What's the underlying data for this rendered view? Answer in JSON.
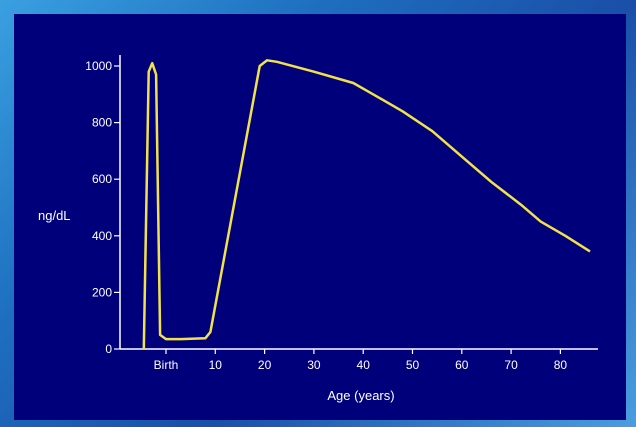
{
  "chart_data": {
    "type": "line",
    "xlabel": "Age (years)",
    "ylabel": "ng/dL",
    "ylim": [
      0,
      1050
    ],
    "yticks": [
      0,
      200,
      400,
      600,
      800,
      1000
    ],
    "xticks": [
      {
        "label": "Birth",
        "x": 0
      },
      {
        "label": "10",
        "x": 10
      },
      {
        "label": "20",
        "x": 20
      },
      {
        "label": "30",
        "x": 30
      },
      {
        "label": "40",
        "x": 40
      },
      {
        "label": "50",
        "x": 50
      },
      {
        "label": "60",
        "x": 60
      },
      {
        "label": "70",
        "x": 70
      },
      {
        "label": "80",
        "x": 80
      }
    ],
    "series": [
      {
        "color": "#f2e24a",
        "points": [
          [
            -4.5,
            0
          ],
          [
            -3.5,
            980
          ],
          [
            -2.8,
            1010
          ],
          [
            -2.0,
            970
          ],
          [
            -1.2,
            50
          ],
          [
            0.0,
            35
          ],
          [
            3.0,
            35
          ],
          [
            8.0,
            38
          ],
          [
            9.0,
            60
          ],
          [
            19.0,
            1000
          ],
          [
            20.5,
            1020
          ],
          [
            22.5,
            1015
          ],
          [
            30.0,
            980
          ],
          [
            38.0,
            940
          ],
          [
            42.0,
            900
          ],
          [
            48.0,
            840
          ],
          [
            54.0,
            770
          ],
          [
            60.0,
            680
          ],
          [
            66.0,
            590
          ],
          [
            72.0,
            510
          ],
          [
            76.0,
            450
          ],
          [
            81.0,
            400
          ],
          [
            86.0,
            345
          ]
        ]
      }
    ]
  }
}
